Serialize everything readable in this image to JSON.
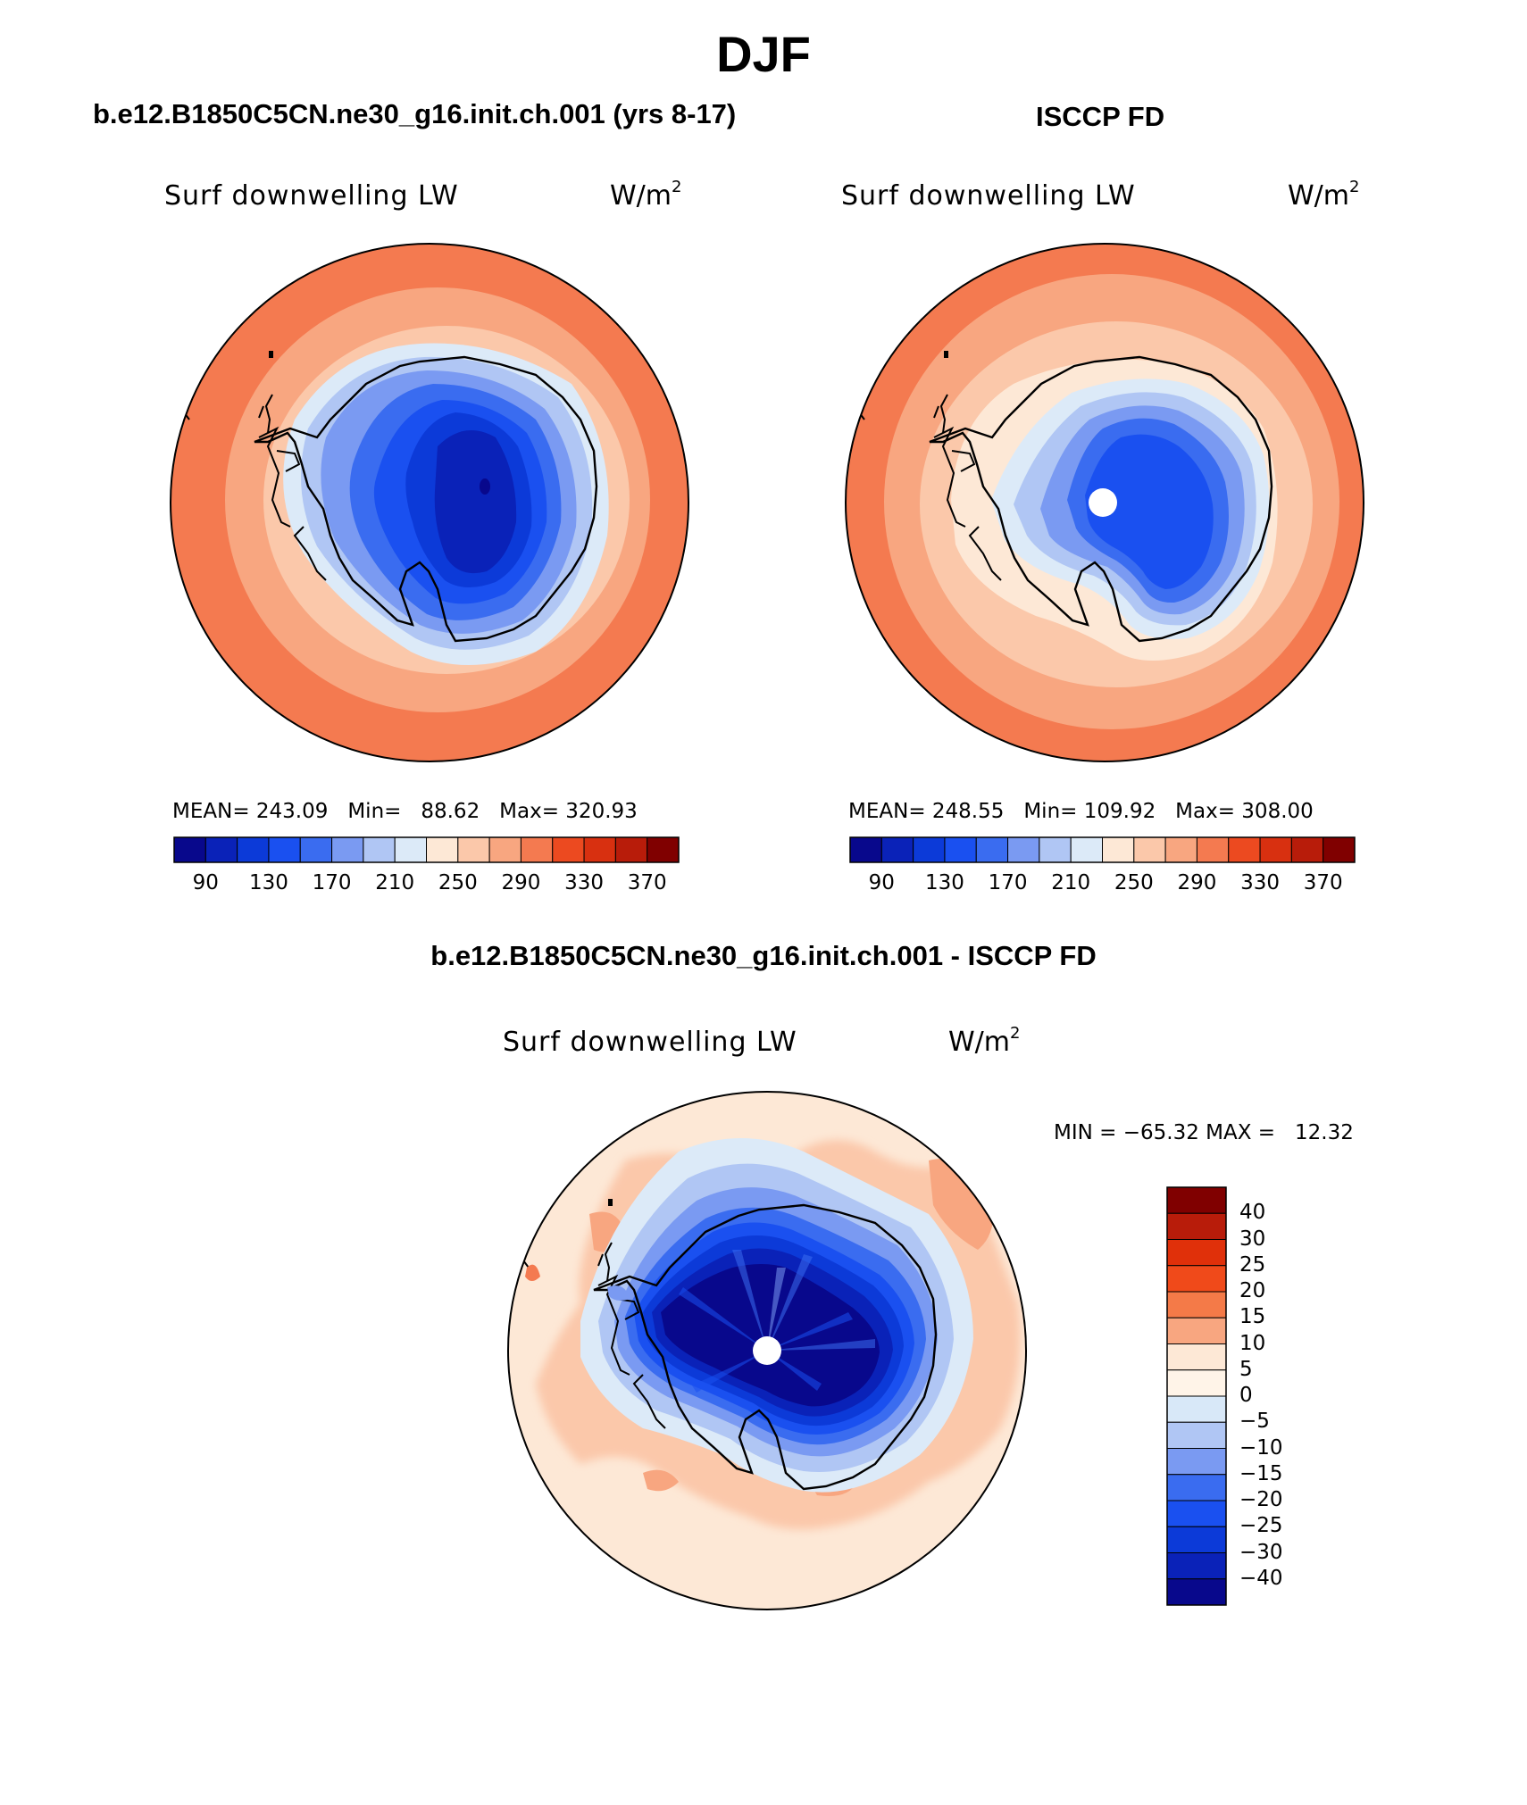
{
  "title": "DJF",
  "panels": [
    {
      "case": "b.e12.B1850C5CN.ne30_g16.init.ch.001 (yrs 8-17)",
      "variable": "Surf downwelling LW",
      "units_base": "W/m",
      "units_exp": "2",
      "stats": {
        "mean_label": "MEAN=",
        "mean": "243.09",
        "min_label": "Min=",
        "min": "88.62",
        "max_label": "Max=",
        "max": "320.93"
      }
    },
    {
      "case": "ISCCP FD",
      "variable": "Surf downwelling LW",
      "units_base": "W/m",
      "units_exp": "2",
      "stats": {
        "mean_label": "MEAN=",
        "mean": "248.55",
        "min_label": "Min=",
        "min": "109.92",
        "max_label": "Max=",
        "max": "308.00"
      }
    }
  ],
  "diff": {
    "case": "b.e12.B1850C5CN.ne30_g16.init.ch.001 - ISCCP FD",
    "variable": "Surf downwelling LW",
    "units_base": "W/m",
    "units_exp": "2",
    "minmax": "MIN = −65.32 MAX =   12.32"
  },
  "chart_data": [
    {
      "type": "heatmap",
      "projection": "south polar stereographic",
      "colorbar": {
        "orientation": "horizontal",
        "levels": [
          90,
          110,
          130,
          150,
          170,
          190,
          210,
          230,
          250,
          270,
          290,
          310,
          330,
          350,
          370
        ],
        "tick_labels": [
          "90",
          "130",
          "170",
          "210",
          "250",
          "290",
          "330",
          "370"
        ],
        "colors": [
          "#08088c",
          "#0a22b8",
          "#0c3ad8",
          "#1a50f0",
          "#3a6cf0",
          "#7a9af2",
          "#b0c6f4",
          "#dceaf8",
          "#fde8d6",
          "#fbc8aa",
          "#f8a680",
          "#f47a50",
          "#ec4a20",
          "#d83010",
          "#b81c0a",
          "#800000"
        ]
      }
    },
    {
      "type": "heatmap",
      "projection": "south polar stereographic",
      "colorbar": {
        "orientation": "horizontal",
        "levels": [
          90,
          110,
          130,
          150,
          170,
          190,
          210,
          230,
          250,
          270,
          290,
          310,
          330,
          350,
          370
        ],
        "tick_labels": [
          "90",
          "130",
          "170",
          "210",
          "250",
          "290",
          "330",
          "370"
        ],
        "colors": [
          "#08088c",
          "#0a22b8",
          "#0c3ad8",
          "#1a50f0",
          "#3a6cf0",
          "#7a9af2",
          "#b0c6f4",
          "#dceaf8",
          "#fde8d6",
          "#fbc8aa",
          "#f8a680",
          "#f47a50",
          "#ec4a20",
          "#d83010",
          "#b81c0a",
          "#800000"
        ]
      }
    },
    {
      "type": "heatmap",
      "projection": "south polar stereographic",
      "colorbar": {
        "orientation": "vertical",
        "levels": [
          40,
          30,
          25,
          20,
          15,
          10,
          5,
          0,
          -5,
          -10,
          -15,
          -20,
          -25,
          -30,
          -40
        ],
        "tick_labels": [
          "40",
          "30",
          "25",
          "20",
          "15",
          "10",
          "5",
          "0",
          "−5",
          "−10",
          "−15",
          "−20",
          "−25",
          "−30",
          "−40"
        ],
        "colors": [
          "#800000",
          "#b81c0a",
          "#e0300a",
          "#f04a1a",
          "#f47a48",
          "#f8a680",
          "#fde8d6",
          "#fff4e8",
          "#d8e8f8",
          "#b0c6f4",
          "#7a9af2",
          "#3a6cf0",
          "#1a50f0",
          "#0c3ad8",
          "#0a22b8",
          "#08088c"
        ]
      }
    }
  ]
}
